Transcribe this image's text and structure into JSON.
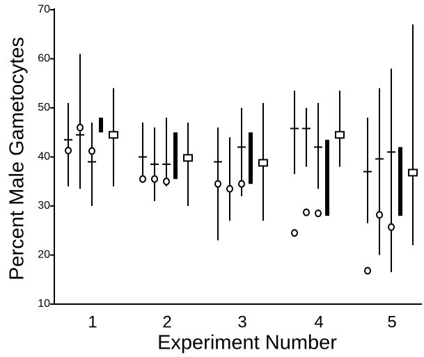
{
  "chart_data": {
    "type": "range",
    "xlabel": "Experiment Number",
    "ylabel": "Percent Male Gametocytes",
    "categories": [
      "1",
      "2",
      "3",
      "4",
      "5"
    ],
    "ylim": [
      10,
      70
    ],
    "yticks": [
      10,
      20,
      30,
      40,
      50,
      60,
      70
    ],
    "color": "#000000",
    "series": [
      {
        "marker": "circle",
        "bar_style": "thin",
        "low": [
          34,
          35,
          23,
          36.5,
          26.5
        ],
        "high": [
          51,
          47,
          46,
          53.5,
          48
        ],
        "mid": [
          43.5,
          40,
          39,
          45.8,
          37
        ],
        "values": [
          41.3,
          35.5,
          34.5,
          24.5,
          16.8
        ]
      },
      {
        "marker": "circle",
        "bar_style": "thin",
        "low": [
          33.5,
          31,
          27,
          38,
          20
        ],
        "high": [
          61,
          46,
          44,
          50,
          54
        ],
        "mid": [
          44.5,
          38.5,
          null,
          45.8,
          39.6
        ],
        "values": [
          46,
          35.5,
          33.5,
          28.7,
          28.2
        ]
      },
      {
        "marker": "circle",
        "bar_style": "thin",
        "low": [
          30,
          34,
          32,
          33.5,
          16.5
        ],
        "high": [
          47,
          48,
          50,
          51,
          58
        ],
        "mid": [
          39,
          38.5,
          42,
          42,
          41
        ],
        "values": [
          41.2,
          35,
          34.5,
          28.5,
          25.7
        ]
      },
      {
        "marker": "none",
        "bar_style": "thick",
        "low": [
          45,
          35.5,
          34.5,
          28,
          28
        ],
        "high": [
          48,
          45,
          45,
          43.5,
          42
        ]
      },
      {
        "marker": "square",
        "bar_style": "thin",
        "low": [
          34,
          30,
          27,
          38,
          22
        ],
        "high": [
          54,
          47,
          51,
          53.5,
          67
        ],
        "values": [
          44.5,
          39.8,
          38.8,
          44.5,
          36.8
        ]
      }
    ]
  }
}
